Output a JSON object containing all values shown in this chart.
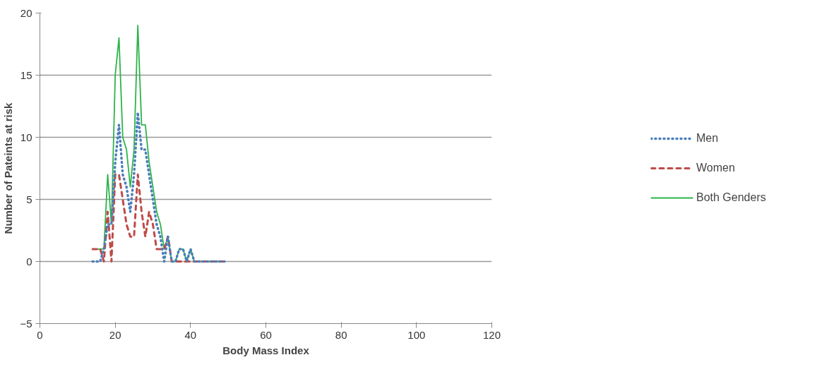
{
  "chart_data": {
    "type": "line",
    "xlabel": "Body Mass Index",
    "ylabel": "Number of Pateints at risk",
    "x": [
      14,
      15,
      16,
      17,
      18,
      19,
      20,
      21,
      22,
      23,
      24,
      25,
      26,
      27,
      28,
      29,
      30,
      31,
      32,
      33,
      34,
      35,
      36,
      37,
      38,
      39,
      40,
      41,
      42,
      43,
      44,
      45,
      46,
      47,
      48,
      49
    ],
    "series": [
      {
        "name": "Men",
        "color": "#4a7ebb",
        "line_style": "dotted",
        "values": [
          0,
          0,
          0,
          1,
          3,
          3,
          8,
          11,
          7,
          6,
          4,
          7,
          12,
          9,
          9,
          7,
          5,
          3,
          2,
          0,
          2,
          0,
          0,
          1,
          1,
          0,
          1,
          0,
          0,
          0,
          0,
          0,
          0,
          0,
          0,
          0
        ]
      },
      {
        "name": "Women",
        "color": "#be4b48",
        "line_style": "dashed",
        "values": [
          1,
          1,
          1,
          0,
          4,
          0,
          7,
          7,
          5,
          3,
          2,
          2,
          7,
          4,
          2,
          4,
          3,
          1,
          1,
          1,
          2,
          0,
          0,
          0,
          0,
          0,
          0,
          0,
          0,
          0,
          0,
          0,
          0,
          0,
          0,
          0
        ]
      },
      {
        "name": "Both Genders",
        "color": "#2db34a",
        "line_style": "solid",
        "values": [
          1,
          1,
          1,
          1,
          7,
          3,
          15,
          18,
          10,
          9,
          6,
          9,
          19,
          11,
          11,
          8,
          6,
          4,
          3,
          1,
          2,
          0,
          0,
          1,
          1,
          0,
          1,
          0,
          0,
          0,
          0,
          0,
          0,
          0,
          0,
          0
        ]
      }
    ],
    "xlim": [
      0,
      120
    ],
    "xticks": [
      0,
      20,
      40,
      60,
      80,
      100,
      120
    ],
    "ylim": [
      -5,
      20
    ],
    "yticks": [
      -5,
      0,
      5,
      10,
      15,
      20
    ],
    "grid": "y",
    "legend": "right",
    "marker": "none"
  }
}
